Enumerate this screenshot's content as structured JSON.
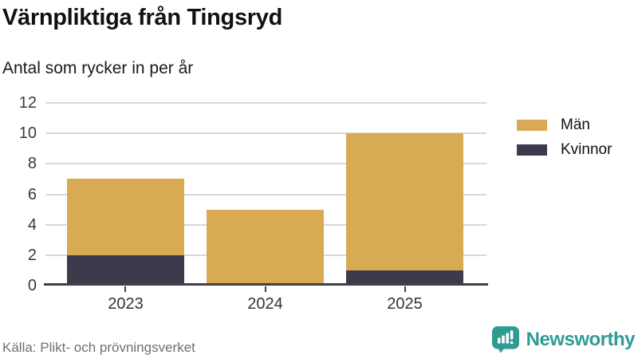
{
  "chart_data": {
    "type": "bar",
    "stacked": true,
    "title": "Värnpliktiga från Tingsryd",
    "subtitle": "Antal som rycker in per år",
    "categories": [
      "2023",
      "2024",
      "2025"
    ],
    "series": [
      {
        "name": "Män",
        "color": "#d8aa53",
        "values": [
          5,
          5,
          9
        ]
      },
      {
        "name": "Kvinnor",
        "color": "#3b3b4c",
        "values": [
          2,
          0,
          1
        ]
      }
    ],
    "totals": [
      7,
      5,
      10
    ],
    "xlabel": "",
    "ylabel": "",
    "ylim": [
      0,
      12
    ],
    "yticks": [
      0,
      2,
      4,
      6,
      8,
      10,
      12
    ],
    "grid": true,
    "legend_position": "right"
  },
  "footer": {
    "source": "Källa: Plikt- och prövningsverket",
    "brand": "Newsworthy"
  },
  "icons": {
    "brand_icon": "newsworthy-speech-bubble-bar-chart-icon"
  },
  "colors": {
    "grid": "#d8d8d8",
    "axis": "#3f3f4e",
    "brand_teal": "#2f9c94",
    "text": "#1a1a1a",
    "muted": "#707070"
  }
}
